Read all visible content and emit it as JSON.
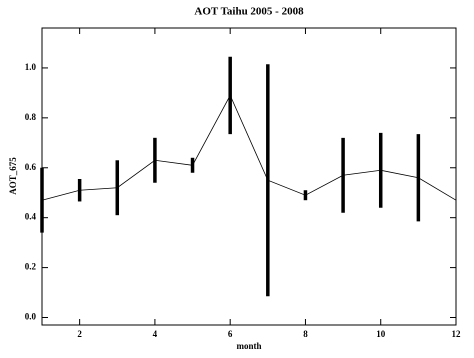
{
  "chart_data": {
    "type": "line",
    "title": "AOT Taihu 2005 - 2008",
    "x_label": "month",
    "y_label": "AOT_675",
    "x": [
      1,
      2,
      3,
      4,
      5,
      6,
      7,
      8,
      9,
      10,
      11,
      12
    ],
    "series": [
      {
        "name": "AOT_675",
        "color": "#000000",
        "values": [
          0.47,
          0.51,
          0.52,
          0.63,
          0.61,
          0.89,
          0.55,
          0.49,
          0.57,
          0.59,
          0.56,
          0.47
        ],
        "errors": [
          0.13,
          0.045,
          0.11,
          0.09,
          0.03,
          0.155,
          0.465,
          0.02,
          0.15,
          0.15,
          0.175,
          null
        ]
      }
    ],
    "xlim": [
      1,
      12
    ],
    "ylim": [
      -0.03,
      1.16
    ],
    "xticks": [
      2,
      4,
      6,
      8,
      10,
      12
    ],
    "yticks": [
      {
        "value": 0,
        "label": "0.0"
      },
      {
        "value": 0.2,
        "label": "0.2"
      },
      {
        "value": 0.4,
        "label": "0.4"
      },
      {
        "value": 0.6,
        "label": "0.6"
      },
      {
        "value": 0.8,
        "label": "0.8"
      },
      {
        "value": 1.0,
        "label": "1.0"
      }
    ]
  }
}
